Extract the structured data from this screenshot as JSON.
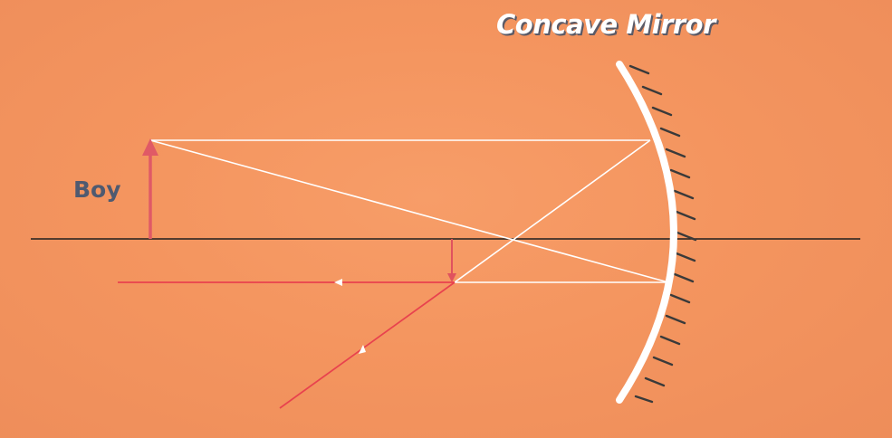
{
  "title": "Concave Mirror",
  "object_label": "Boy",
  "colors": {
    "background": "#f4955f",
    "ray": "#ffffff",
    "object_arrow": "#e05a66",
    "image_arrow": "#e0525e",
    "reflected_ray": "#e8424e",
    "axis": "#1f1f1f",
    "mirror": "#ffffff",
    "hatch": "#3a3a3a",
    "title_shadow": "#5b5a66",
    "label": "#4f5a70"
  }
}
